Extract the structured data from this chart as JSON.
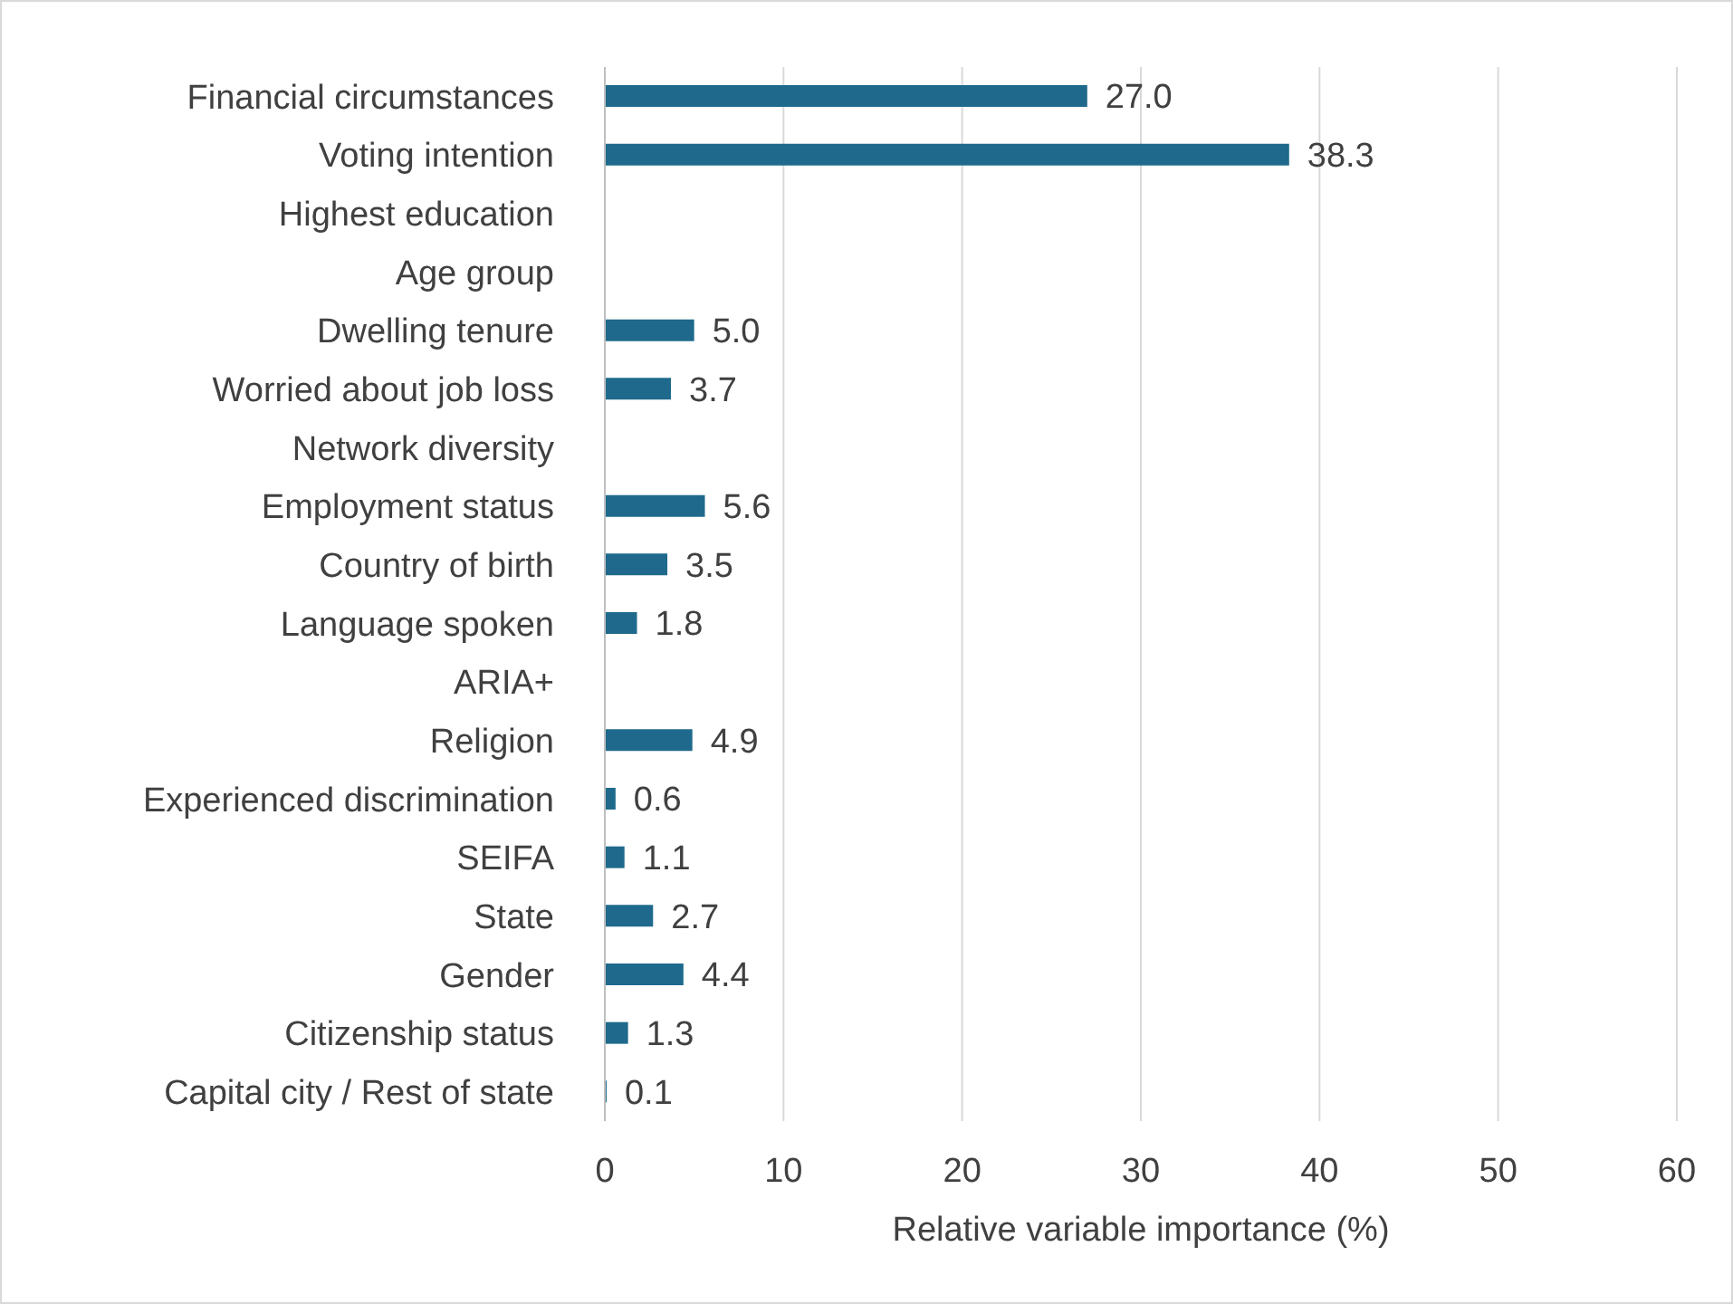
{
  "chart_data": {
    "type": "bar",
    "orientation": "horizontal",
    "xlabel": "Relative variable importance (%)",
    "categories": [
      "Financial circumstances",
      "Voting intention",
      "Highest education",
      "Age group",
      "Dwelling tenure",
      "Worried about job loss",
      "Network diversity",
      "Employment status",
      "Country of birth",
      "Language spoken",
      "ARIA+",
      "Religion",
      "Experienced discrimination",
      "SEIFA",
      "State",
      "Gender",
      "Citizenship status",
      "Capital city / Rest of state"
    ],
    "values": [
      27.0,
      38.3,
      null,
      null,
      5.0,
      3.7,
      null,
      5.6,
      3.5,
      1.8,
      null,
      4.9,
      0.6,
      1.1,
      2.7,
      4.4,
      1.3,
      0.1
    ],
    "value_labels": [
      "27.0",
      "38.3",
      null,
      null,
      "5.0",
      "3.7",
      null,
      "5.6",
      "3.5",
      "1.8",
      null,
      "4.9",
      "0.6",
      "1.1",
      "2.7",
      "4.4",
      "1.3",
      "0.1"
    ],
    "color": "#1f6a8c",
    "xlim": [
      0,
      60
    ],
    "xticks": [
      0,
      10,
      20,
      30,
      40,
      50,
      60
    ],
    "grid": "x",
    "legend": false
  }
}
